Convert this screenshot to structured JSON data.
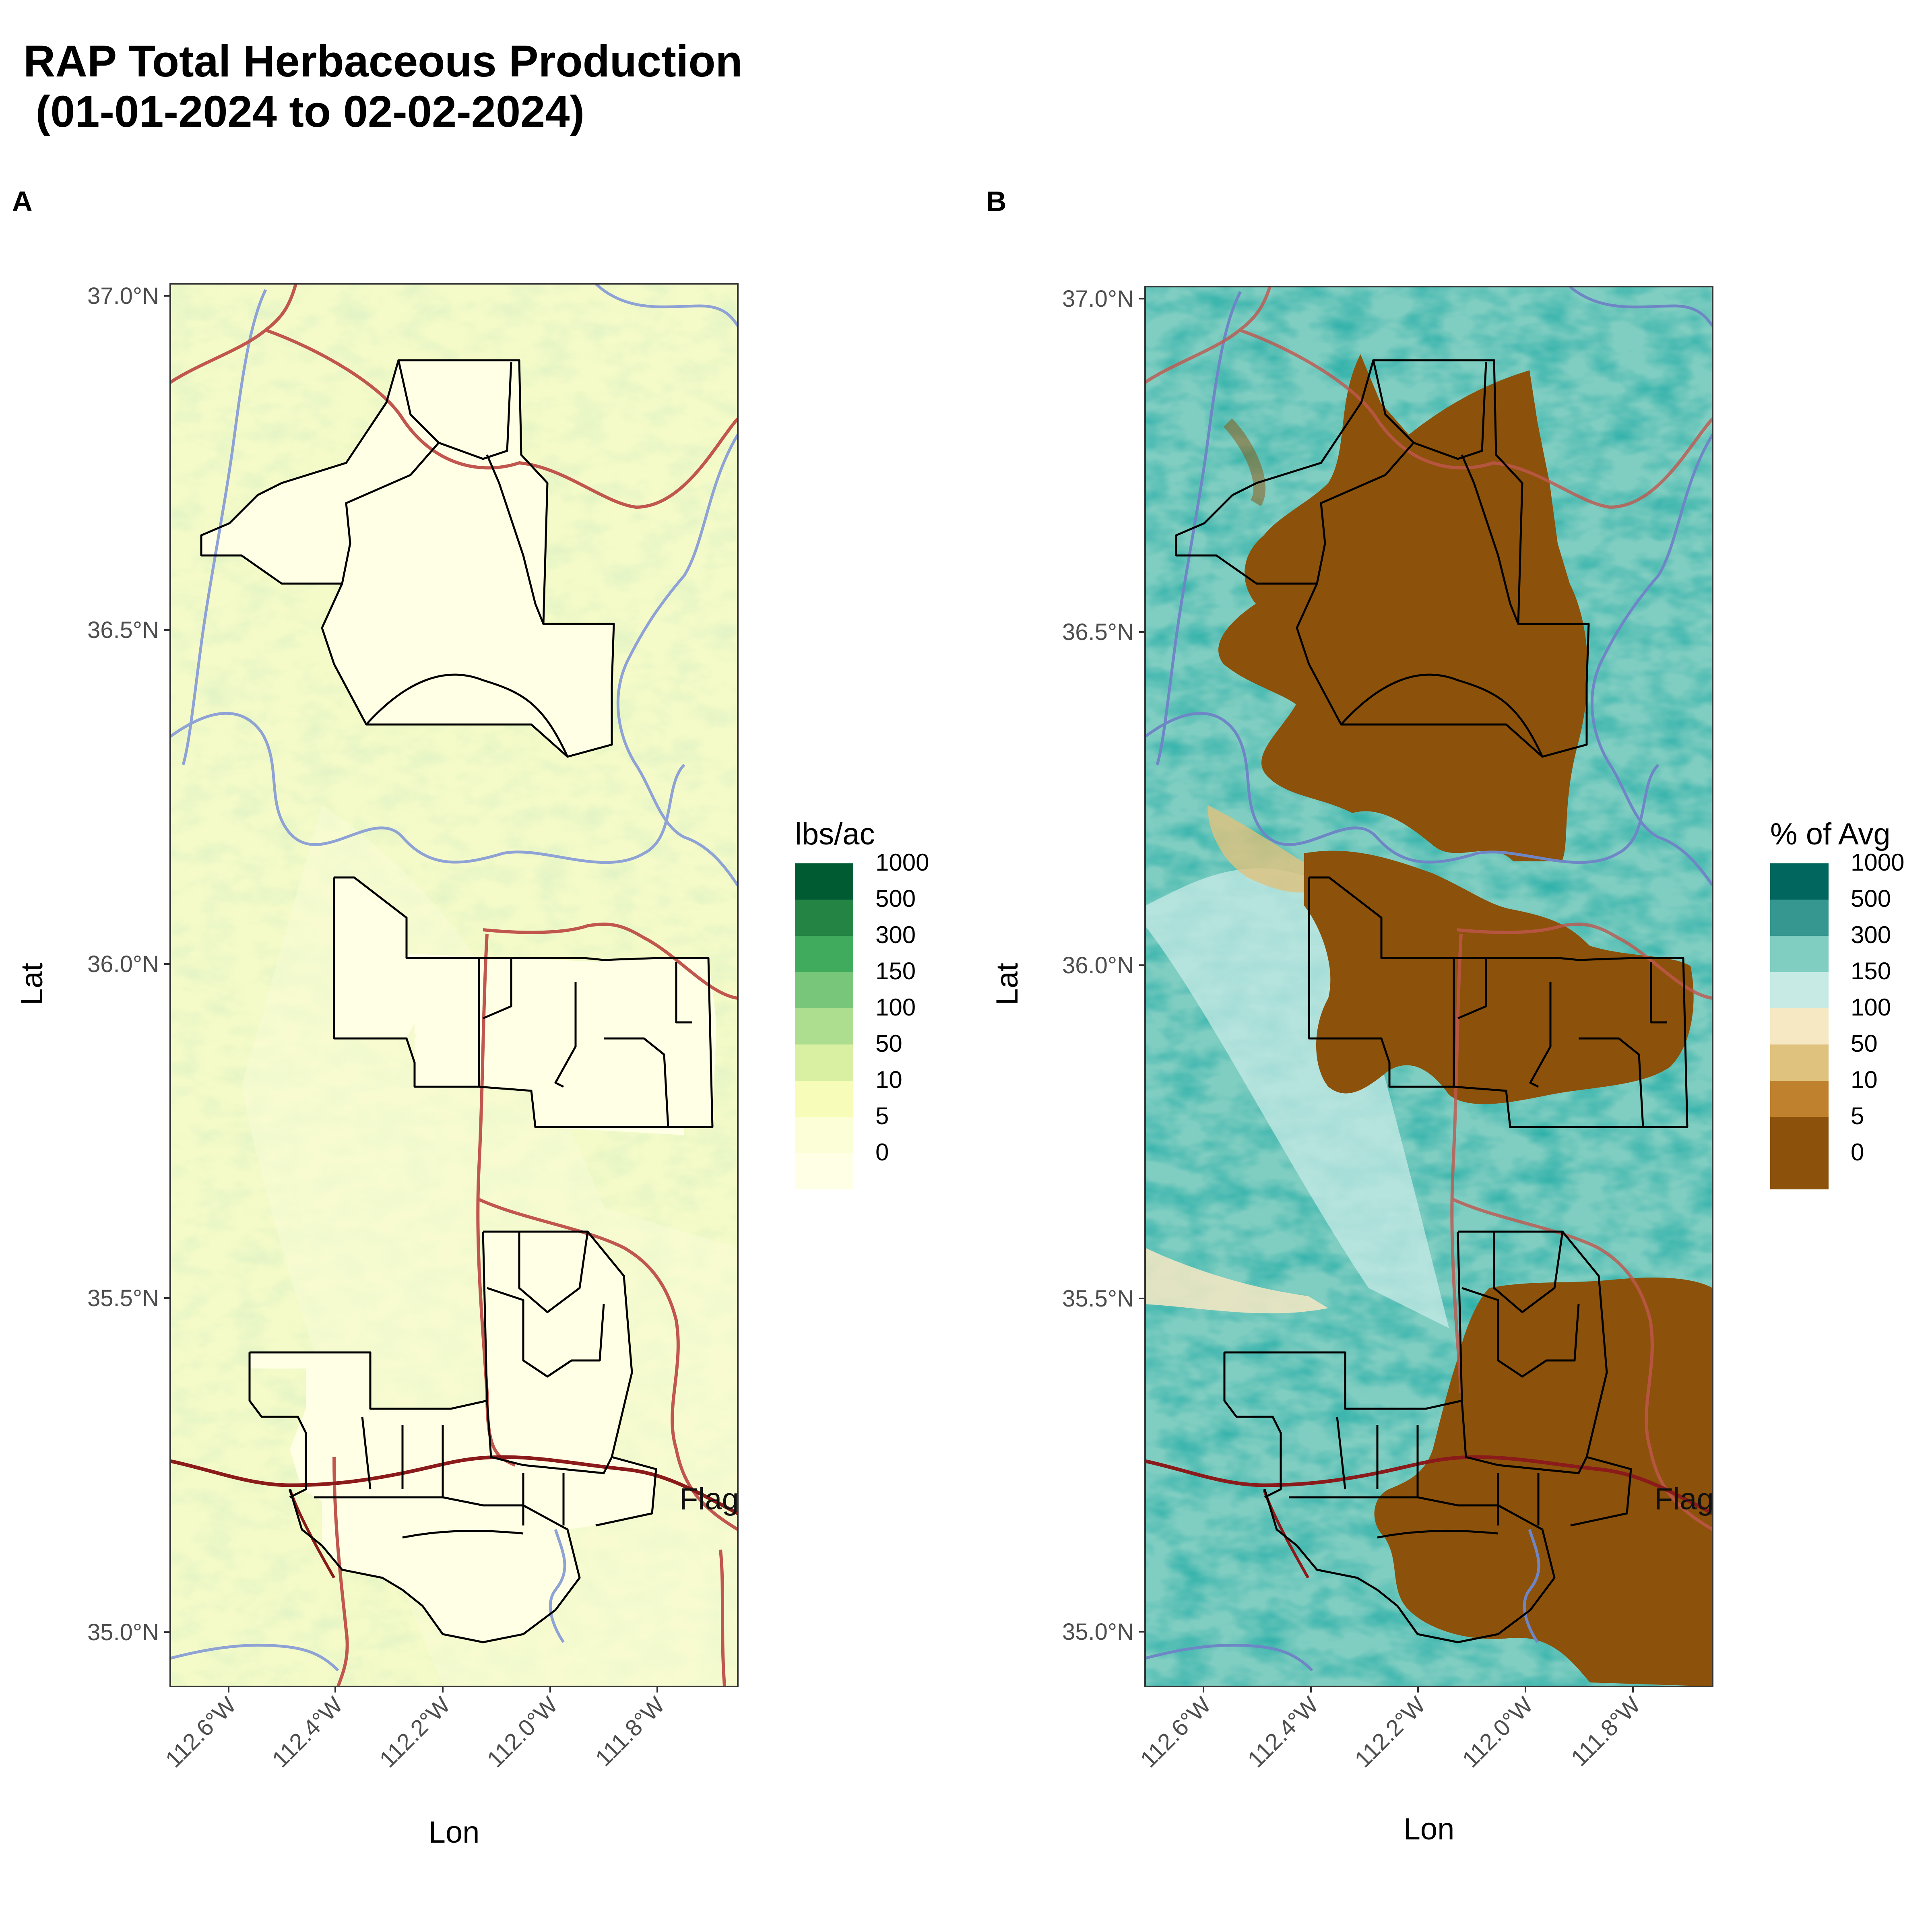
{
  "title": "RAP Total Herbaceous Production\n (01-01-2024 to 02-02-2024)",
  "panels": [
    {
      "tag": "A",
      "xlabel": "Lon",
      "ylabel": "Lat",
      "legend": {
        "title": "lbs/ac",
        "labels": [
          "1000",
          "500",
          "300",
          "150",
          "100",
          "50",
          "10",
          "5",
          "0"
        ],
        "colors": [
          "#005a32",
          "#238443",
          "#41ab5d",
          "#78c679",
          "#addd8e",
          "#d9f0a3",
          "#f7fcb9",
          "#fcfed8",
          "#ffffe5"
        ]
      },
      "city_label": "Flag"
    },
    {
      "tag": "B",
      "xlabel": "Lon",
      "ylabel": "Lat",
      "legend": {
        "title": "% of Avg",
        "labels": [
          "1000",
          "500",
          "300",
          "150",
          "100",
          "50",
          "10",
          "5",
          "0"
        ],
        "colors": [
          "#01665e",
          "#35978f",
          "#80cdc1",
          "#c7eae5",
          "#f6e8c3",
          "#dfc27d",
          "#bf812d",
          "#8c510a",
          "#8c510a"
        ]
      },
      "city_label": "Flag"
    }
  ],
  "axes": {
    "lat_ticks": [
      "37.0°N",
      "36.5°N",
      "36.0°N",
      "35.5°N",
      "35.0°N"
    ],
    "lon_ticks": [
      "112.6°W",
      "112.4°W",
      "112.2°W",
      "112.0°W",
      "111.8°W"
    ],
    "lat_range": [
      34.92,
      37.01
    ],
    "lon_range": [
      -112.71,
      -111.65
    ]
  },
  "colors": {
    "road": "#c0564e",
    "highway": "#8b1a1a",
    "river": "#7b93c9",
    "boundary": "#000000"
  }
}
